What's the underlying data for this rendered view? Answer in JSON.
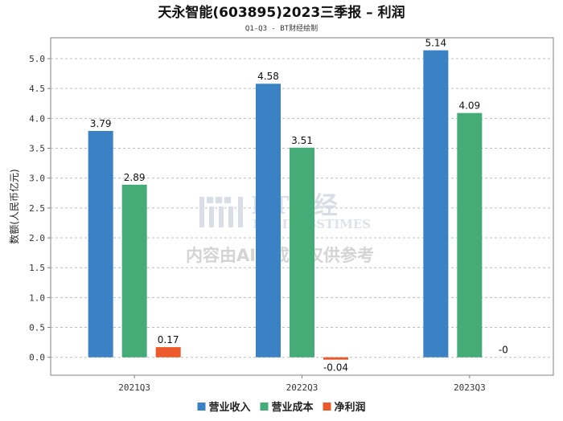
{
  "chart_data": {
    "type": "bar",
    "title": "天永智能(603895)2023三季报 – 利润",
    "subtitle": "Q1-Q3 - BT财经绘制",
    "xlabel": "",
    "ylabel": "数额(人民币亿元)",
    "categories": [
      "2021Q3",
      "2022Q3",
      "2023Q3"
    ],
    "ylim": [
      -0.3,
      5.35
    ],
    "yticks": [
      "0.0",
      "0.5",
      "1.0",
      "1.5",
      "2.0",
      "2.5",
      "3.0",
      "3.5",
      "4.0",
      "4.5",
      "5.0"
    ],
    "grid": true,
    "legend_position": "bottom-center",
    "series": [
      {
        "name": "营业收入",
        "color": "#3a82c4",
        "values": [
          3.79,
          4.58,
          5.14
        ],
        "labels": [
          "3.79",
          "4.58",
          "5.14"
        ]
      },
      {
        "name": "营业成本",
        "color": "#45ab77",
        "values": [
          2.89,
          3.51,
          4.09
        ],
        "labels": [
          "2.89",
          "3.51",
          "4.09"
        ]
      },
      {
        "name": "净利润",
        "color": "#ec5a2c",
        "values": [
          0.17,
          -0.04,
          0
        ],
        "labels": [
          "0.17",
          "-0.04",
          "-0"
        ]
      }
    ]
  },
  "watermark": {
    "logo_text": "BT财经",
    "logo_sub": "BUSINESSTIMES",
    "notice": "内容由AI生成，仅供参考"
  }
}
